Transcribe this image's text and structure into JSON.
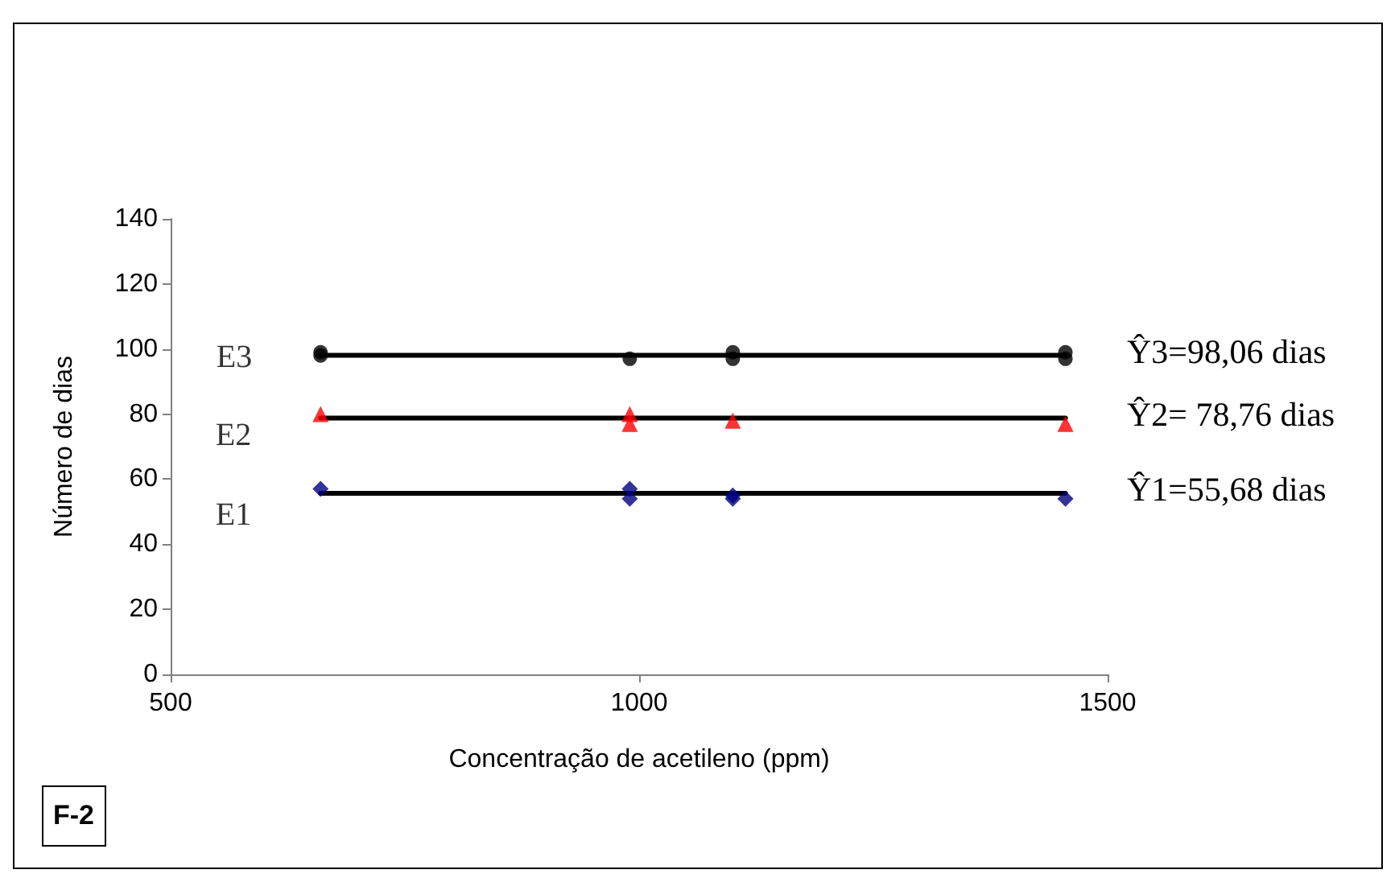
{
  "chart_data": {
    "type": "scatter",
    "xlabel": "Concentração de acetileno (ppm)",
    "ylabel": "Número de dias",
    "xlim": [
      500,
      1500
    ],
    "xticks": [
      500,
      1000,
      1500
    ],
    "ylim": [
      0,
      140
    ],
    "yticks": [
      0,
      20,
      40,
      60,
      80,
      100,
      120,
      140
    ],
    "grid": false,
    "legend": false,
    "series": [
      {
        "name": "E3",
        "color": "#000000",
        "marker": "circle",
        "x": [
          660,
          660,
          990,
          1100,
          1100,
          1455,
          1455
        ],
        "values": [
          99,
          98,
          97,
          99,
          97,
          99,
          97
        ]
      },
      {
        "name": "E2",
        "color": "#ff0000",
        "marker": "triangle",
        "x": [
          660,
          990,
          990,
          1100,
          1455
        ],
        "values": [
          80,
          80,
          77,
          78,
          77
        ]
      },
      {
        "name": "E1",
        "color": "#000080",
        "marker": "diamond",
        "x": [
          660,
          990,
          990,
          1100,
          1100,
          1455
        ],
        "values": [
          57,
          57,
          54,
          55,
          54,
          54
        ]
      },
      {
        "type": "line",
        "color": "#000000",
        "marker": "none",
        "line_style": "solid",
        "x": [
          660,
          1455
        ],
        "values": [
          98.06,
          98.06
        ]
      },
      {
        "type": "line",
        "color": "#000000",
        "marker": "none",
        "line_style": "solid",
        "x": [
          660,
          1455
        ],
        "values": [
          78.76,
          78.76
        ]
      },
      {
        "type": "line",
        "color": "#000000",
        "marker": "none",
        "line_style": "solid",
        "x": [
          660,
          1455
        ],
        "values": [
          55.68,
          55.68
        ]
      }
    ],
    "annotations": [
      "Ŷ3=98,06 dias",
      "Ŷ2= 78,76 dias",
      "Ŷ1=55,68 dias",
      "F-2"
    ]
  }
}
